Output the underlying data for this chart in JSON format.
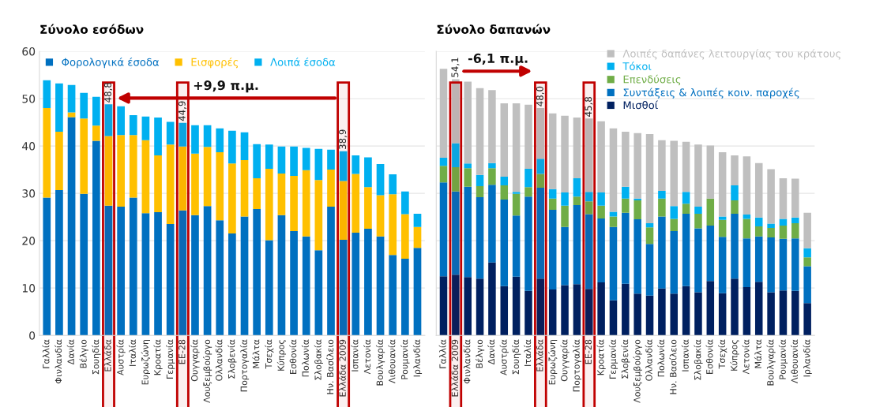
{
  "chart_data": [
    {
      "type": "bar",
      "title": "Σύνολο εσόδων",
      "stacked": true,
      "ylim": [
        0,
        60
      ],
      "yticks": [
        0,
        10,
        20,
        30,
        40,
        50,
        60
      ],
      "grid": "y",
      "legend": "top",
      "categories": [
        "Γαλλία",
        "Φινλανδία",
        "Δανία",
        "Βέλγιο",
        "Σουηδία",
        "Ελλάδα",
        "Αυστρία",
        "Ιταλία",
        "Ευρωζώνη",
        "Κροατία",
        "Γερμανία",
        "ΕΕ-28",
        "Ουγγαρία",
        "Λουξεμβούργο",
        "Ολλανδία",
        "Σλοβενία",
        "Πορτογαλία",
        "Μάλτα",
        "Τσεχία",
        "Κύπρος",
        "Εσθονία",
        "Πολωνία",
        "Σλοβακία",
        "Ην. Βασίλειο",
        "Ελλάδα 2009",
        "Ισπανία",
        "Λετονία",
        "Βουλγαρία",
        "Λιθουανία",
        "Ρουμανία",
        "Ιρλανδία"
      ],
      "series": [
        {
          "name": "Φορολογικά έσοδα",
          "color": "#0070c0",
          "values": [
            29.1,
            30.7,
            46.1,
            29.9,
            41.1,
            27.4,
            27.2,
            29.1,
            25.8,
            26.0,
            23.5,
            26.4,
            25.4,
            27.3,
            24.3,
            21.5,
            25.1,
            26.7,
            20.1,
            25.4,
            22.0,
            20.9,
            18.0,
            27.2,
            20.2,
            21.7,
            22.5,
            20.9,
            17.0,
            16.2,
            18.5
          ]
        },
        {
          "name": "Εισφορές",
          "color": "#ffc000",
          "values": [
            18.9,
            12.3,
            1.0,
            15.9,
            3.2,
            14.7,
            15.1,
            13.2,
            15.4,
            12.0,
            16.8,
            13.5,
            13.0,
            12.5,
            14.4,
            14.8,
            11.9,
            6.5,
            15.1,
            8.8,
            11.7,
            14.0,
            14.8,
            7.8,
            12.4,
            12.4,
            8.8,
            8.7,
            12.8,
            9.4,
            4.4
          ]
        },
        {
          "name": "Λοιπά έσοδα",
          "color": "#00b0f0",
          "values": [
            5.9,
            10.2,
            5.8,
            5.4,
            6.1,
            6.7,
            6.1,
            4.2,
            5.0,
            8.0,
            4.8,
            5.0,
            6.0,
            4.6,
            5.0,
            6.9,
            5.9,
            7.2,
            5.1,
            5.7,
            6.2,
            4.7,
            6.6,
            4.2,
            6.3,
            3.9,
            6.3,
            6.6,
            4.2,
            4.8,
            2.8
          ]
        }
      ],
      "totals": [
        null,
        null,
        null,
        null,
        null,
        "48,8",
        null,
        null,
        null,
        null,
        null,
        "44,9",
        null,
        null,
        null,
        null,
        null,
        null,
        null,
        null,
        null,
        null,
        null,
        null,
        "38,9",
        null,
        null,
        null,
        null,
        null,
        null
      ],
      "bands": [
        {
          "axis": "x",
          "from": "Ελλάδα 2009",
          "to": "Ελλάδα 2009",
          "color": "#c00000"
        },
        {
          "axis": "x",
          "from": "Ελλάδα",
          "to": "Ελλάδα",
          "color": "#c00000"
        },
        {
          "axis": "x",
          "from": "ΕΕ-28",
          "to": "ΕΕ-28",
          "color": "#c00000"
        }
      ],
      "annotations": [
        "+9,9 π.μ."
      ]
    },
    {
      "type": "bar",
      "title": "Σύνολο δαπανών",
      "stacked": true,
      "ylim": [
        0,
        60
      ],
      "yticks": [
        0,
        10,
        20,
        30,
        40,
        50,
        60
      ],
      "grid": "y",
      "legend": "top right",
      "tick_labels": "x",
      "categories": [
        "Γαλλία",
        "Ελλάδα 2009",
        "Φινλανδία",
        "Βέλγιο",
        "Δανία",
        "Αυστρία",
        "Σουηδία",
        "Ιταλία",
        "Ελλάδα",
        "Ευρωζώνη",
        "Ουγγαρία",
        "Πορτογαλία",
        "ΕΕ-28",
        "Κροατία",
        "Γερμανία",
        "Σλοβενία",
        "Λουξεμβούργο",
        "Ολλανδία",
        "Πολωνία",
        "Ην. Βασίλειο",
        "Ισπανία",
        "Σλοβακία",
        "Εσθονία",
        "Τσεχία",
        "Κύπρος",
        "Λετονία",
        "Μάλτα",
        "Βουλγαρία",
        "Ρουμανία",
        "Λιθουανία",
        "Ιρλανδία"
      ],
      "series": [
        {
          "name": "Μισθοί",
          "color": "#002060",
          "values": [
            12.5,
            12.8,
            12.3,
            12.0,
            15.4,
            10.4,
            12.4,
            9.4,
            12.0,
            9.7,
            10.6,
            10.8,
            9.8,
            11.2,
            7.4,
            10.9,
            8.8,
            8.4,
            9.9,
            8.8,
            10.4,
            9.1,
            11.5,
            8.9,
            12.0,
            10.2,
            11.3,
            9.1,
            9.5,
            9.4,
            6.8
          ]
        },
        {
          "name": "Συντάξεις & λοιπές κοιν. παροχές",
          "color": "#0070c0",
          "values": [
            19.8,
            17.6,
            19.1,
            17.2,
            16.4,
            18.3,
            12.9,
            19.9,
            19.2,
            16.8,
            12.3,
            16.7,
            15.8,
            13.5,
            15.5,
            15.0,
            15.7,
            10.9,
            15.2,
            13.2,
            15.3,
            13.5,
            11.7,
            11.9,
            13.7,
            10.3,
            9.6,
            11.6,
            10.9,
            11.1,
            7.8
          ]
        },
        {
          "name": "Επενδύσεις",
          "color": "#70ad47",
          "values": [
            3.5,
            5.1,
            3.9,
            2.3,
            3.5,
            3.0,
            4.6,
            2.0,
            2.9,
            2.4,
            4.5,
            1.8,
            2.7,
            2.7,
            2.2,
            3.0,
            4.0,
            3.5,
            3.8,
            2.6,
            2.1,
            3.1,
            5.7,
            3.6,
            2.8,
            4.1,
            2.1,
            2.0,
            2.8,
            3.2,
            1.9
          ]
        },
        {
          "name": "Τόκοι",
          "color": "#00b0f0",
          "values": [
            1.7,
            5.1,
            1.0,
            2.4,
            1.1,
            1.8,
            0.4,
            3.9,
            3.2,
            2.0,
            2.8,
            3.9,
            2.0,
            2.8,
            1.0,
            2.5,
            0.4,
            0.9,
            1.6,
            2.7,
            2.5,
            1.5,
            0.0,
            0.7,
            3.2,
            0.9,
            1.9,
            0.9,
            1.4,
            1.2,
            1.9
          ]
        },
        {
          "name": "Λοιπές δαπάνες λειτουργίας του κράτους",
          "color": "#bfbfbf",
          "values": [
            18.8,
            13.5,
            17.3,
            18.3,
            15.4,
            15.5,
            18.7,
            13.5,
            10.7,
            16.0,
            16.2,
            12.8,
            15.5,
            15.0,
            17.6,
            11.6,
            13.8,
            18.8,
            10.7,
            13.8,
            10.6,
            13.1,
            11.2,
            13.6,
            6.3,
            12.3,
            11.5,
            11.5,
            8.6,
            8.2,
            7.5
          ]
        }
      ],
      "totals": [
        null,
        "54,1",
        null,
        null,
        null,
        null,
        null,
        null,
        "48,0",
        null,
        null,
        null,
        "45,8",
        null,
        null,
        null,
        null,
        null,
        null,
        null,
        null,
        null,
        null,
        null,
        null,
        null,
        null,
        null,
        null,
        null,
        null
      ],
      "bands": [
        {
          "axis": "x",
          "from": "Ελλάδα 2009",
          "to": "Ελλάδα 2009",
          "color": "#c00000"
        },
        {
          "axis": "x",
          "from": "Ελλάδα",
          "to": "Ελλάδα",
          "color": "#c00000"
        },
        {
          "axis": "x",
          "from": "ΕΕ-28",
          "to": "ΕΕ-28",
          "color": "#c00000"
        }
      ],
      "annotations": [
        "-6,1 π.μ."
      ]
    }
  ]
}
